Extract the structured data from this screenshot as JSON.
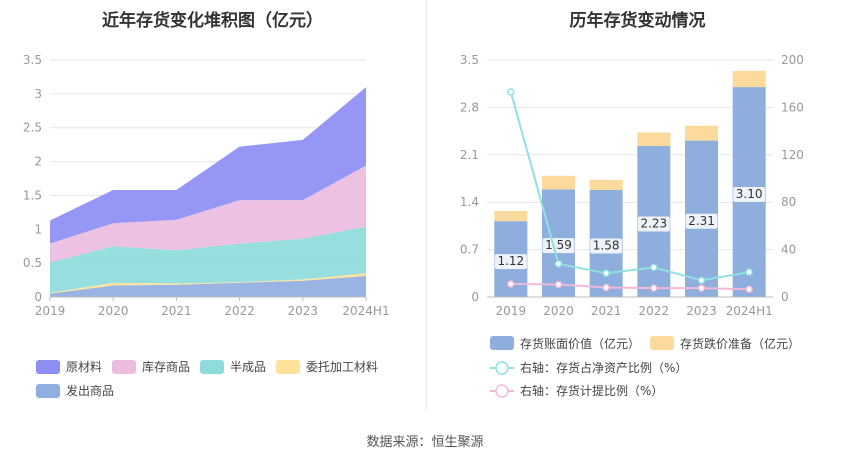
{
  "left_chart": {
    "title": "近年存货变化堆积图（亿元）"
  },
  "right_chart": {
    "title": "历年存货变动情况"
  },
  "source": "数据来源：恒生聚源",
  "chart_data": [
    {
      "type": "area",
      "stacked": true,
      "title": "近年存货变化堆积图（亿元）",
      "categories": [
        "2019",
        "2020",
        "2021",
        "2022",
        "2023",
        "2024H1"
      ],
      "ylim": [
        0,
        3.5
      ],
      "yticks": [
        "0",
        "0.5",
        "1",
        "1.5",
        "2",
        "2.5",
        "3",
        "3.5"
      ],
      "grid": true,
      "legend_position": "bottom-left",
      "series": [
        {
          "name": "发出商品",
          "color": "#90aee0",
          "values": [
            0.05,
            0.17,
            0.18,
            0.21,
            0.24,
            0.31
          ]
        },
        {
          "name": "委托加工材料",
          "color": "#fde29a",
          "values": [
            0.01,
            0.04,
            0.02,
            0.01,
            0.02,
            0.04
          ]
        },
        {
          "name": "半成品",
          "color": "#8edcdc",
          "values": [
            0.45,
            0.54,
            0.49,
            0.57,
            0.6,
            0.69
          ]
        },
        {
          "name": "库存商品",
          "color": "#ecbcdf",
          "values": [
            0.28,
            0.34,
            0.45,
            0.64,
            0.57,
            0.9
          ]
        },
        {
          "name": "原材料",
          "color": "#8d8ef4",
          "values": [
            0.34,
            0.49,
            0.44,
            0.79,
            0.89,
            1.16
          ]
        }
      ],
      "legend_order": [
        "原材料",
        "库存商品",
        "半成品",
        "委托加工材料",
        "发出商品"
      ]
    },
    {
      "type": "bar",
      "stacked": true,
      "title": "历年存货变动情况",
      "categories": [
        "2019",
        "2020",
        "2021",
        "2022",
        "2023",
        "2024H1"
      ],
      "ylim": [
        0,
        3.5
      ],
      "yticks": [
        "0",
        "0.7",
        "1.4",
        "2.1",
        "2.8",
        "3.5"
      ],
      "y2lim": [
        0,
        200
      ],
      "y2ticks": [
        "0",
        "40",
        "80",
        "120",
        "160",
        "200"
      ],
      "grid": true,
      "legend_position": "bottom",
      "series": [
        {
          "name": "存货账面价值（亿元）",
          "color": "#8eaedd",
          "axis": "left",
          "values": [
            1.12,
            1.59,
            1.58,
            2.23,
            2.31,
            3.1
          ],
          "labels": [
            "1.12",
            "1.59",
            "1.58",
            "2.23",
            "2.31",
            "3.10"
          ]
        },
        {
          "name": "存货跌价准备（亿元）",
          "color": "#fdd99b",
          "axis": "left",
          "values": [
            0.15,
            0.2,
            0.15,
            0.2,
            0.22,
            0.24
          ]
        }
      ],
      "lines": [
        {
          "name": "右轴：存货占净资产比例（%）",
          "color": "#8fe1e4",
          "axis": "right",
          "values": [
            173,
            28,
            20,
            25,
            14,
            21
          ]
        },
        {
          "name": "右轴：存货计提比例（%）",
          "color": "#f2b8d8",
          "axis": "right",
          "values": [
            11,
            10.5,
            8,
            7.5,
            7.5,
            6.5
          ]
        }
      ]
    }
  ]
}
